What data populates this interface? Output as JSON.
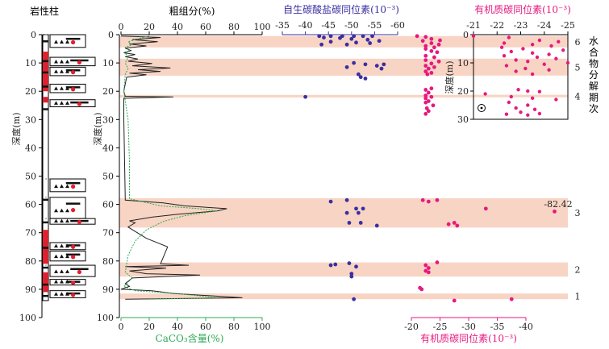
{
  "chart_data": {
    "type": "scatter",
    "depth_label": "深度(m)",
    "depth_range": [
      0,
      100
    ],
    "depth_ticks": [
      0,
      10,
      20,
      30,
      40,
      50,
      60,
      70,
      80,
      90,
      100
    ],
    "lithology": {
      "title": "岩性柱",
      "blocks": [
        [
          0,
          4.5
        ],
        [
          8,
          11
        ],
        [
          11.5,
          14.5
        ],
        [
          17.5,
          20.5
        ],
        [
          23,
          25.5
        ],
        [
          51,
          55.5
        ],
        [
          57.5,
          65
        ],
        [
          65,
          67
        ],
        [
          73.5,
          76
        ],
        [
          76.5,
          80
        ],
        [
          81.5,
          85.5
        ],
        [
          86.5,
          88.5
        ],
        [
          90.5,
          93
        ]
      ],
      "red_bands": [
        [
          6,
          20
        ],
        [
          22,
          24
        ],
        [
          69,
          81
        ],
        [
          84,
          91
        ]
      ]
    },
    "stages": [
      {
        "label": "6",
        "range": [
          0.5,
          4.5
        ]
      },
      {
        "label": "5",
        "range": [
          8.5,
          14.5
        ]
      },
      {
        "label": "4",
        "range": [
          21.3,
          22.2
        ]
      },
      {
        "label": "3",
        "range": [
          57.8,
          68.2
        ]
      },
      {
        "label": "2",
        "range": [
          80.5,
          85.5
        ]
      },
      {
        "label": "1",
        "range": [
          91.5,
          93.5
        ]
      }
    ],
    "stage_axis_label": "水合物分解期次",
    "coarse": {
      "title": "粗组分(%)",
      "xlim": [
        0,
        100
      ],
      "ticks": [
        0,
        20,
        40,
        60,
        80,
        100
      ],
      "points": [
        [
          0,
          0.5
        ],
        [
          28,
          1
        ],
        [
          8,
          1.8
        ],
        [
          26,
          2.5
        ],
        [
          6,
          3.3
        ],
        [
          18,
          4
        ],
        [
          3,
          4.8
        ],
        [
          7,
          5.6
        ],
        [
          2,
          6.4
        ],
        [
          10,
          7
        ],
        [
          3,
          7.8
        ],
        [
          12,
          8.6
        ],
        [
          5,
          9.4
        ],
        [
          22,
          10.2
        ],
        [
          8,
          11
        ],
        [
          35,
          11.8
        ],
        [
          12,
          12.4
        ],
        [
          28,
          13
        ],
        [
          6,
          13.6
        ],
        [
          18,
          14.2
        ],
        [
          4,
          15
        ],
        [
          2,
          20
        ],
        [
          3,
          21.8
        ],
        [
          37,
          22
        ],
        [
          2,
          22.5
        ],
        [
          2,
          30
        ],
        [
          3,
          58.5
        ],
        [
          30,
          59.5
        ],
        [
          45,
          60.5
        ],
        [
          75,
          61.5
        ],
        [
          68,
          62.3
        ],
        [
          40,
          63.5
        ],
        [
          22,
          64.5
        ],
        [
          6,
          65.8
        ],
        [
          10,
          66.5
        ],
        [
          5,
          68
        ],
        [
          18,
          72
        ],
        [
          33,
          75
        ],
        [
          28,
          81
        ],
        [
          48,
          81.5
        ],
        [
          3,
          82
        ],
        [
          32,
          82.5
        ],
        [
          6,
          83.5
        ],
        [
          18,
          84.5
        ],
        [
          56,
          85
        ],
        [
          8,
          86
        ],
        [
          3,
          88
        ],
        [
          6,
          89
        ],
        [
          0,
          90
        ],
        [
          22,
          90.5
        ],
        [
          38,
          91.5
        ],
        [
          86,
          93
        ],
        [
          3,
          93.5
        ]
      ]
    },
    "caco3": {
      "xlabel": "CaCO₃含量(%)",
      "xlim": [
        0,
        100
      ],
      "ticks": [
        0,
        20,
        40,
        60,
        80,
        100
      ],
      "points": [
        [
          20,
          0.5
        ],
        [
          12,
          1.5
        ],
        [
          5,
          2.5
        ],
        [
          8,
          3.5
        ],
        [
          3,
          4.5
        ],
        [
          6,
          5.5
        ],
        [
          3,
          6.5
        ],
        [
          5,
          8
        ],
        [
          3,
          10
        ],
        [
          5,
          12
        ],
        [
          3,
          14
        ],
        [
          2,
          20
        ],
        [
          5,
          30
        ],
        [
          6,
          45
        ],
        [
          6,
          58
        ],
        [
          15,
          59
        ],
        [
          28,
          60.5
        ],
        [
          55,
          61.5
        ],
        [
          68,
          62.3
        ],
        [
          45,
          64
        ],
        [
          30,
          66
        ],
        [
          18,
          69
        ],
        [
          10,
          73
        ],
        [
          5,
          78
        ],
        [
          3,
          84
        ],
        [
          8,
          86
        ],
        [
          2,
          89
        ],
        [
          10,
          90.5
        ],
        [
          40,
          91.5
        ],
        [
          68,
          93
        ],
        [
          20,
          93.5
        ]
      ]
    },
    "carbonate": {
      "title": "自生碳酸盐碳同位素(10⁻³)",
      "xlim": [
        -35,
        -60
      ],
      "ticks": [
        -35,
        -40,
        -45,
        -50,
        -55,
        -60
      ],
      "points": [
        [
          -43,
          0.5
        ],
        [
          -45.5,
          0.5
        ],
        [
          -48,
          0.5
        ],
        [
          -50.5,
          0.5
        ],
        [
          -52.5,
          0.5
        ],
        [
          -54.5,
          0.5
        ],
        [
          -44,
          1
        ],
        [
          -47.5,
          1.2
        ],
        [
          -50,
          1.5
        ],
        [
          -53.5,
          1.8
        ],
        [
          -56,
          2.2
        ],
        [
          -45.5,
          2.5
        ],
        [
          -51,
          2.8
        ],
        [
          -54,
          3
        ],
        [
          -43.5,
          3.5
        ],
        [
          -49,
          3.5
        ],
        [
          -50.5,
          10
        ],
        [
          -53,
          10.5
        ],
        [
          -57,
          10.5
        ],
        [
          -55.5,
          11
        ],
        [
          -49,
          11.5
        ],
        [
          -56.5,
          12
        ],
        [
          -51.5,
          14
        ],
        [
          -52,
          15
        ],
        [
          -53,
          15.5
        ],
        [
          -40,
          22
        ],
        [
          -45.5,
          59
        ],
        [
          -49,
          58.5
        ],
        [
          -51,
          61.5
        ],
        [
          -52.5,
          61.5
        ],
        [
          -49,
          63
        ],
        [
          -51.5,
          63
        ],
        [
          -49.5,
          66.5
        ],
        [
          -52,
          66.5
        ],
        [
          -55.5,
          67.5
        ],
        [
          -45.5,
          81.5
        ],
        [
          -46.5,
          81.2
        ],
        [
          -49.5,
          80.8
        ],
        [
          -51,
          82
        ],
        [
          -50,
          84.5
        ],
        [
          -50,
          85.5
        ],
        [
          -50.5,
          93.5
        ]
      ]
    },
    "organic": {
      "xlabel": "有机质碳同位素(10⁻³)",
      "xlim": [
        -20,
        -40
      ],
      "ticks": [
        -20,
        -25,
        -30,
        -35,
        -40
      ],
      "points": [
        [
          -21,
          0.5
        ],
        [
          -22.5,
          0.8
        ],
        [
          -23.5,
          1.5
        ],
        [
          -25,
          2
        ],
        [
          -22,
          2.2
        ],
        [
          -23.5,
          3
        ],
        [
          -24.8,
          3.5
        ],
        [
          -22.5,
          4
        ],
        [
          -24,
          4.5
        ],
        [
          -22.5,
          5
        ],
        [
          -23.5,
          5.8
        ],
        [
          -24.5,
          6.2
        ],
        [
          -22.5,
          7.5
        ],
        [
          -24,
          8
        ],
        [
          -22.5,
          9
        ],
        [
          -24.8,
          9.5
        ],
        [
          -23.5,
          10.2
        ],
        [
          -22.5,
          11
        ],
        [
          -24,
          11.5
        ],
        [
          -23,
          12
        ],
        [
          -22.5,
          13
        ],
        [
          -23.5,
          13.5
        ],
        [
          -22.8,
          14
        ],
        [
          -23.5,
          19
        ],
        [
          -22.5,
          19.5
        ],
        [
          -23,
          20.5
        ],
        [
          -22.5,
          21.5
        ],
        [
          -23.5,
          22
        ],
        [
          -22.5,
          22.5
        ],
        [
          -23,
          23.5
        ],
        [
          -22.5,
          24
        ],
        [
          -23.8,
          25
        ],
        [
          -22.7,
          26
        ],
        [
          -23,
          27
        ],
        [
          -22.5,
          28
        ],
        [
          -22,
          58.5
        ],
        [
          -23,
          59
        ],
        [
          -24.5,
          58.5
        ],
        [
          -33,
          61.5
        ],
        [
          -45,
          62.5
        ],
        [
          -26.5,
          67
        ],
        [
          -27.5,
          66.5
        ],
        [
          -28,
          67.5
        ],
        [
          -24.5,
          80.5
        ],
        [
          -22.5,
          81.5
        ],
        [
          -23,
          82.5
        ],
        [
          -22.5,
          83.5
        ],
        [
          -23,
          84
        ],
        [
          -21.5,
          89.5
        ],
        [
          -21.8,
          90
        ],
        [
          -27.5,
          94
        ],
        [
          -37.5,
          93.5
        ]
      ],
      "annotation": "-82.42"
    },
    "inset": {
      "title": "有机质碳同位素(10⁻³)",
      "xlim": [
        -21,
        -25
      ],
      "ticks": [
        -21,
        -22,
        -23,
        -24,
        -25
      ],
      "depth_range": [
        0,
        30
      ],
      "depth_ticks": [
        0,
        10,
        20,
        30
      ],
      "bands": [
        [
          0.5,
          4.5
        ],
        [
          8.5,
          14.5
        ],
        [
          21.3,
          22.2
        ]
      ],
      "points": [
        [
          -21,
          0.5
        ],
        [
          -22.5,
          1
        ],
        [
          -23.8,
          2
        ],
        [
          -24.6,
          2.5
        ],
        [
          -22.3,
          3
        ],
        [
          -23.5,
          3.5
        ],
        [
          -24.3,
          4
        ],
        [
          -22.2,
          4.5
        ],
        [
          -23.1,
          5
        ],
        [
          -24.8,
          5.5
        ],
        [
          -22.6,
          6
        ],
        [
          -23.5,
          6.5
        ],
        [
          -24.2,
          7
        ],
        [
          -22.3,
          7.5
        ],
        [
          -23.7,
          8
        ],
        [
          -24.5,
          8.5
        ],
        [
          -22.8,
          9
        ],
        [
          -23.3,
          9.5
        ],
        [
          -25,
          10
        ],
        [
          -24,
          10.5
        ],
        [
          -22.4,
          11
        ],
        [
          -23.2,
          12
        ],
        [
          -24.2,
          12.5
        ],
        [
          -22.8,
          13
        ],
        [
          -23.5,
          14
        ],
        [
          -22.9,
          19.5
        ],
        [
          -23.3,
          20
        ],
        [
          -23.8,
          20.2
        ],
        [
          -21.5,
          21
        ],
        [
          -22.6,
          22
        ],
        [
          -23.5,
          22.5
        ],
        [
          -24.5,
          23
        ],
        [
          -22.5,
          24
        ],
        [
          -23.3,
          25
        ],
        [
          -22.8,
          26
        ],
        [
          -23.6,
          26.5
        ],
        [
          -23,
          27.5
        ],
        [
          -23.8,
          28
        ],
        [
          -22.4,
          28.2
        ],
        [
          -23.3,
          28.5
        ]
      ]
    },
    "colors": {
      "band": "#f8d4c4",
      "coarse": "#222222",
      "caco3": "#2eaa56",
      "carbonate": "#3a2fa0",
      "organic": "#e6197f",
      "lith_red": "#e0202f"
    }
  }
}
